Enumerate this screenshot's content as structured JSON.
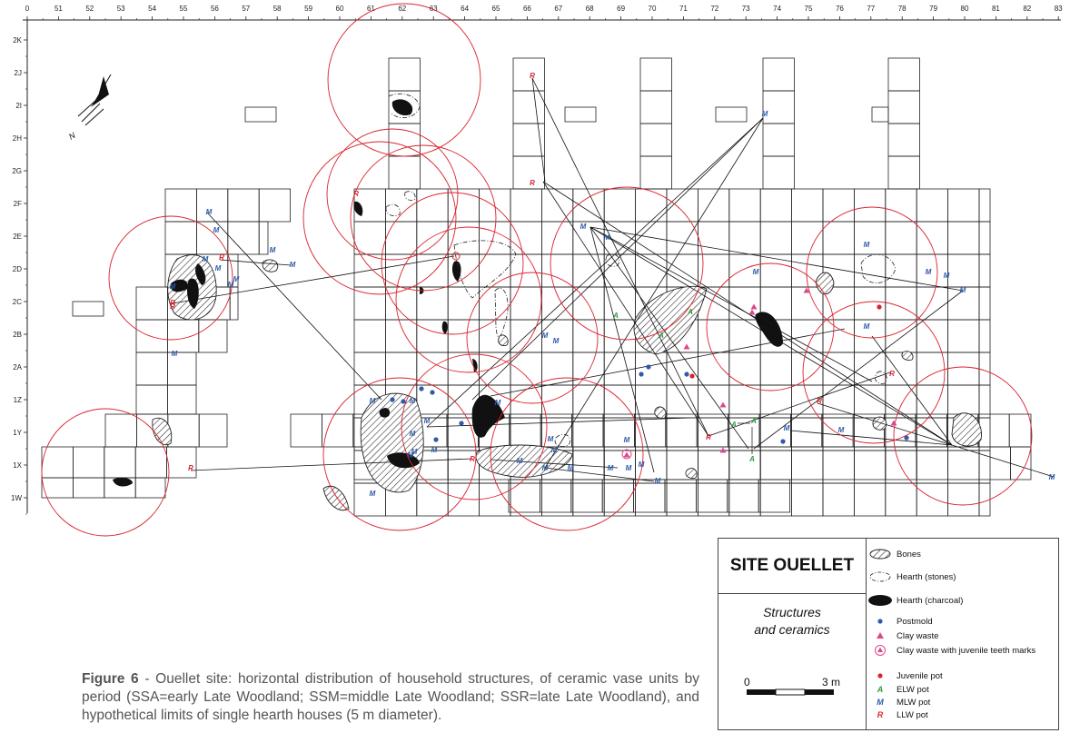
{
  "top_axis": [
    "0",
    "51",
    "52",
    "53",
    "54",
    "55",
    "56",
    "57",
    "58",
    "59",
    "60",
    "61",
    "62",
    "63",
    "64",
    "65",
    "66",
    "67",
    "68",
    "69",
    "70",
    "71",
    "72",
    "73",
    "74",
    "75",
    "76",
    "77",
    "78",
    "79",
    "80",
    "81",
    "82",
    "83"
  ],
  "left_axis": [
    "2K",
    "2J",
    "2I",
    "2H",
    "2G",
    "2F",
    "2E",
    "2D",
    "2C",
    "2B",
    "2A",
    "1Z",
    "1Y",
    "1X",
    "1W"
  ],
  "north_label": "N",
  "marks": {
    "M": "M",
    "R": "R",
    "A": "A"
  },
  "legend": {
    "title": "SITE OUELLET",
    "subtitle_1": "Structures",
    "subtitle_2": "and ceramics",
    "scale_start": "0",
    "scale_end": "3 m",
    "items": [
      {
        "label": "Bones"
      },
      {
        "label": "Hearth (stones)"
      },
      {
        "label": "Hearth (charcoal)"
      },
      {
        "label": "Postmold"
      },
      {
        "label": "Clay waste"
      },
      {
        "label": "Clay waste with juvenile teeth marks"
      },
      {
        "label": "Juvenile pot"
      },
      {
        "label": "ELW pot",
        "mark": "A"
      },
      {
        "label": "MLW pot",
        "mark": "M"
      },
      {
        "label": "LLW pot",
        "mark": "R"
      }
    ]
  },
  "caption": {
    "lead": "Figure 6",
    "text": " - Ouellet site: horizontal distribution of household structures, of ceramic vase units by period (SSA=early Late Woodland; SSM=middle Late Woodland; SSR=late Late Woodland), and hypothetical limits of single hearth houses (5 m diameter)."
  },
  "colors": {
    "hearth_circle": "#d9232e",
    "postmold": "#2e5aa8",
    "clay": "#e0468c",
    "mlw": "#2e5aa8",
    "elw": "#2e9a3e",
    "llw": "#d9232e"
  }
}
